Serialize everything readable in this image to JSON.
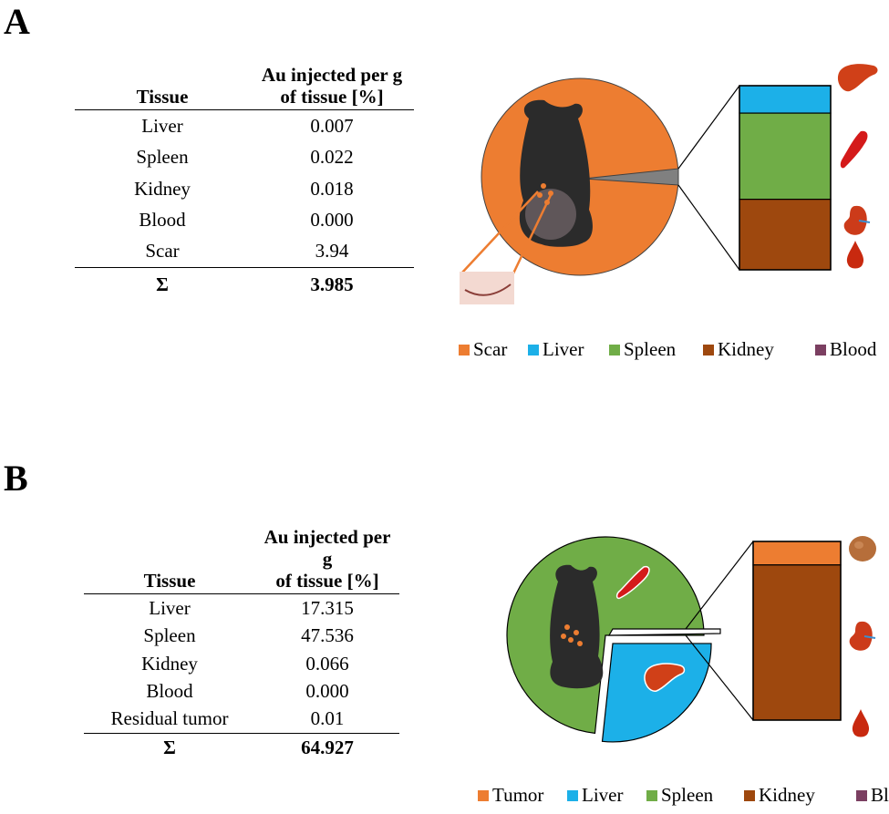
{
  "panels": {
    "a": {
      "letter": "A"
    },
    "b": {
      "letter": "B"
    }
  },
  "colors": {
    "scar": "#ED7D31",
    "tumor": "#ED7D31",
    "liver": "#1CB0E8",
    "spleen": "#70AD47",
    "kidney": "#9E480E",
    "blood": "#7B3F61"
  },
  "icons": [
    "liver-icon",
    "spleen-icon",
    "kidney-icon",
    "blood-drop-icon",
    "mouse-image",
    "scar-image",
    "tumor-icon"
  ],
  "chart_data": [
    {
      "type": "table",
      "panel": "A",
      "columns": [
        "Tissue",
        "Au injected per g of tissue [%]"
      ],
      "header": {
        "col1": "Tissue",
        "col2_line1": "Au injected per g",
        "col2_line2": "of tissue [%]"
      },
      "rows": [
        {
          "tissue": "Liver",
          "value": "0.007"
        },
        {
          "tissue": "Spleen",
          "value": "0.022"
        },
        {
          "tissue": "Kidney",
          "value": "0.018"
        },
        {
          "tissue": "Blood",
          "value": "0.000"
        },
        {
          "tissue": "Scar",
          "value": "3.94"
        }
      ],
      "total": {
        "label": "Σ",
        "value": "3.985"
      }
    },
    {
      "type": "pie",
      "variant": "pie-of-bar",
      "panel": "A",
      "slices": [
        {
          "name": "Scar",
          "value": 3.94
        },
        {
          "name": "Liver",
          "value": 0.007
        },
        {
          "name": "Spleen",
          "value": 0.022
        },
        {
          "name": "Kidney",
          "value": 0.018
        },
        {
          "name": "Blood",
          "value": 0.0
        }
      ],
      "pie_slices": [
        "Scar"
      ],
      "bar_slices": [
        "Liver",
        "Spleen",
        "Kidney",
        "Blood"
      ],
      "legend": [
        "Scar",
        "Liver",
        "Spleen",
        "Kidney",
        "Blood"
      ],
      "legend_position": "bottom"
    },
    {
      "type": "table",
      "panel": "B",
      "columns": [
        "Tissue",
        "Au injected per g of tissue [%]"
      ],
      "header": {
        "col1": "Tissue",
        "col2_line1": "Au injected per g",
        "col2_line2": "of tissue [%]"
      },
      "rows": [
        {
          "tissue": "Liver",
          "value": "17.315"
        },
        {
          "tissue": "Spleen",
          "value": "47.536"
        },
        {
          "tissue": "Kidney",
          "value": "0.066"
        },
        {
          "tissue": "Blood",
          "value": "0.000"
        },
        {
          "tissue": "Residual tumor",
          "value": "0.01"
        }
      ],
      "total": {
        "label": "Σ",
        "value": "64.927"
      }
    },
    {
      "type": "pie",
      "variant": "pie-of-bar",
      "panel": "B",
      "slices": [
        {
          "name": "Tumor",
          "value": 0.01
        },
        {
          "name": "Liver",
          "value": 17.315
        },
        {
          "name": "Spleen",
          "value": 47.536
        },
        {
          "name": "Kidney",
          "value": 0.066
        },
        {
          "name": "Blood",
          "value": 0.0
        }
      ],
      "pie_slices": [
        "Spleen",
        "Liver"
      ],
      "bar_slices": [
        "Tumor",
        "Kidney",
        "Blood"
      ],
      "legend": [
        "Tumor",
        "Liver",
        "Spleen",
        "Kidney",
        "Blood"
      ],
      "legend_position": "bottom"
    }
  ]
}
